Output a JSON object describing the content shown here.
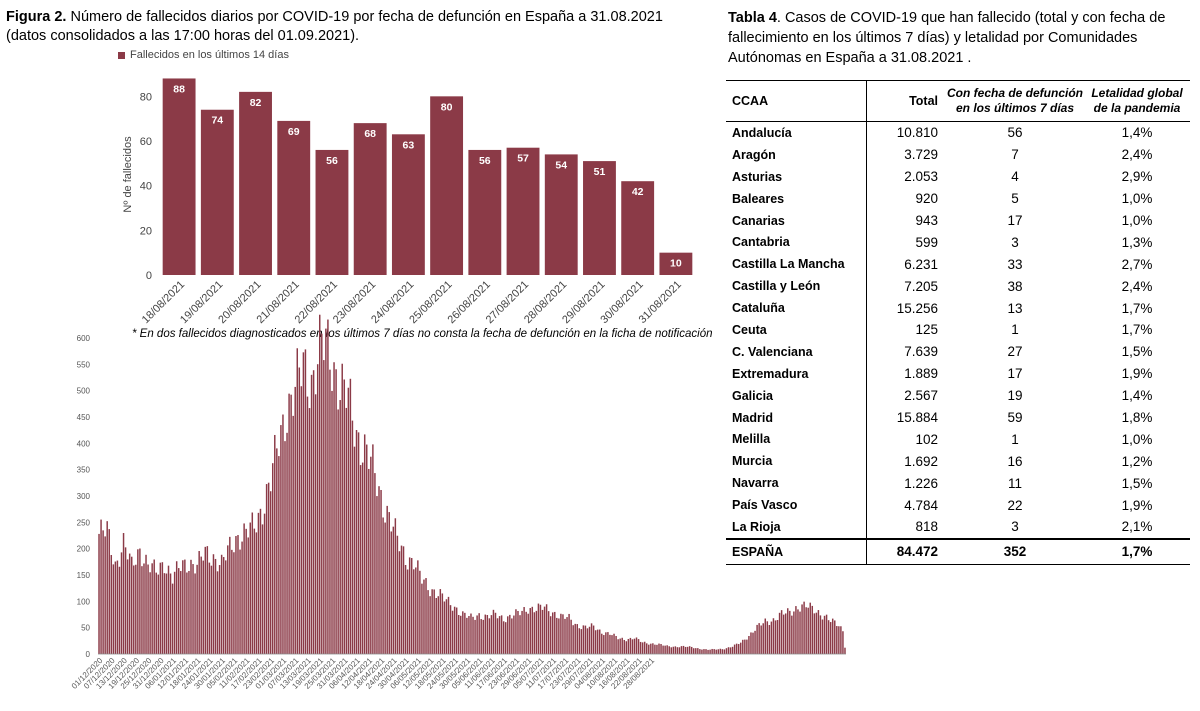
{
  "figure": {
    "label": "Figura 2.",
    "caption": " Número de fallecidos diarios por COVID-19 por fecha de defunción en España a 31.08.2021 (datos consolidados a las 17:00 horas del 01.09.2021).",
    "footnote": "* En dos fallecidos diagnosticados en los últimos 7 días no consta la fecha de defunción en la ficha de notificación"
  },
  "colors": {
    "bar": "#8b3a47"
  },
  "chart_data": [
    {
      "type": "bar",
      "legend": "Fallecidos en los últimos 14 días",
      "legend_placement": "top-left",
      "ylabel": "Nº de fallecidos",
      "ylim": [
        0,
        90
      ],
      "yticks": [
        "0",
        "20",
        "40",
        "60",
        "80"
      ],
      "categories": [
        "18/08/2021",
        "19/08/2021",
        "20/08/2021",
        "21/08/2021",
        "22/08/2021",
        "23/08/2021",
        "24/08/2021",
        "25/08/2021",
        "26/08/2021",
        "27/08/2021",
        "28/08/2021",
        "29/08/2021",
        "30/08/2021",
        "31/08/2021"
      ],
      "values": [
        88,
        74,
        82,
        69,
        56,
        68,
        63,
        80,
        56,
        57,
        54,
        51,
        42,
        10
      ],
      "labels": [
        "88",
        "74",
        "82",
        "69",
        "56",
        "68",
        "63",
        "80",
        "56",
        "57",
        "54",
        "51",
        "42",
        "10"
      ]
    },
    {
      "type": "bar",
      "ylim": [
        0,
        600
      ],
      "yticks": [
        "0",
        "50",
        "100",
        "150",
        "200",
        "250",
        "300",
        "350",
        "400",
        "450",
        "500",
        "550",
        "600"
      ],
      "xticks": [
        "01/12/2020",
        "07/12/2020",
        "13/12/2020",
        "19/12/2020",
        "25/12/2020",
        "31/12/2020",
        "06/01/2021",
        "12/01/2021",
        "18/01/2021",
        "24/01/2021",
        "30/01/2021",
        "05/02/2021",
        "11/02/2021",
        "17/02/2021",
        "23/02/2021",
        "01/03/2021",
        "07/03/2021",
        "13/03/2021",
        "19/03/2021",
        "25/03/2021",
        "31/03/2021",
        "06/04/2021",
        "12/04/2021",
        "18/04/2021",
        "24/04/2021",
        "30/04/2021",
        "06/05/2021",
        "12/05/2021",
        "18/05/2021",
        "24/05/2021",
        "30/05/2021",
        "05/06/2021",
        "11/06/2021",
        "17/06/2021",
        "23/06/2021",
        "29/06/2021",
        "05/07/2021",
        "11/07/2021",
        "17/07/2021",
        "23/07/2021",
        "29/07/2021",
        "04/08/2021",
        "10/08/2021",
        "16/08/2021",
        "22/08/2021",
        "28/08/2021"
      ],
      "x_start": "01/12/2020",
      "anchors": [
        [
          0,
          228
        ],
        [
          4,
          232
        ],
        [
          8,
          170
        ],
        [
          12,
          210
        ],
        [
          16,
          165
        ],
        [
          20,
          200
        ],
        [
          24,
          168
        ],
        [
          28,
          155
        ],
        [
          32,
          175
        ],
        [
          36,
          145
        ],
        [
          40,
          165
        ],
        [
          44,
          175
        ],
        [
          48,
          168
        ],
        [
          52,
          190
        ],
        [
          56,
          185
        ],
        [
          60,
          170
        ],
        [
          64,
          200
        ],
        [
          68,
          225
        ],
        [
          72,
          230
        ],
        [
          76,
          240
        ],
        [
          80,
          280
        ],
        [
          84,
          330
        ],
        [
          88,
          400
        ],
        [
          92,
          470
        ],
        [
          96,
          500
        ],
        [
          100,
          545
        ],
        [
          104,
          520
        ],
        [
          108,
          575
        ],
        [
          111,
          585
        ],
        [
          114,
          560
        ],
        [
          118,
          510
        ],
        [
          122,
          480
        ],
        [
          126,
          420
        ],
        [
          130,
          390
        ],
        [
          134,
          350
        ],
        [
          138,
          300
        ],
        [
          142,
          260
        ],
        [
          146,
          215
        ],
        [
          150,
          185
        ],
        [
          154,
          175
        ],
        [
          158,
          140
        ],
        [
          162,
          125
        ],
        [
          166,
          115
        ],
        [
          170,
          100
        ],
        [
          174,
          90
        ],
        [
          178,
          75
        ],
        [
          182,
          68
        ],
        [
          186,
          75
        ],
        [
          190,
          70
        ],
        [
          194,
          75
        ],
        [
          198,
          68
        ],
        [
          202,
          72
        ],
        [
          206,
          78
        ],
        [
          210,
          88
        ],
        [
          214,
          85
        ],
        [
          218,
          88
        ],
        [
          222,
          80
        ],
        [
          226,
          70
        ],
        [
          230,
          68
        ],
        [
          234,
          55
        ],
        [
          238,
          50
        ],
        [
          242,
          52
        ],
        [
          246,
          42
        ],
        [
          250,
          38
        ],
        [
          254,
          30
        ],
        [
          258,
          28
        ],
        [
          262,
          30
        ],
        [
          266,
          22
        ],
        [
          270,
          20
        ],
        [
          274,
          18
        ],
        [
          278,
          15
        ],
        [
          282,
          14
        ],
        [
          286,
          14
        ],
        [
          290,
          13
        ],
        [
          294,
          10
        ],
        [
          298,
          8
        ],
        [
          302,
          9
        ],
        [
          306,
          10
        ],
        [
          310,
          14
        ],
        [
          314,
          22
        ],
        [
          318,
          35
        ],
        [
          322,
          50
        ],
        [
          326,
          62
        ],
        [
          330,
          65
        ],
        [
          334,
          75
        ],
        [
          338,
          80
        ],
        [
          342,
          90
        ],
        [
          346,
          90
        ],
        [
          350,
          85
        ],
        [
          354,
          75
        ],
        [
          358,
          62
        ],
        [
          362,
          55
        ],
        [
          364,
          45
        ],
        [
          365,
          12
        ]
      ]
    }
  ],
  "table": {
    "label": "Tabla 4",
    "caption": ". Casos de COVID-19 que han fallecido (total y con fecha de fallecimiento en los últimos 7 días) y letalidad por Comunidades Autónomas en España a 31.08.2021 .",
    "headers": {
      "ccaa": "CCAA",
      "total": "Total",
      "recent_1": "Con fecha de defunción",
      "recent_2": "en los últimos 7 días",
      "lethality_1": "Letalidad global",
      "lethality_2": "de la pandemia"
    },
    "rows": [
      {
        "ccaa": "Andalucía",
        "total": "10.810",
        "recent": "56",
        "lethality": "1,4%"
      },
      {
        "ccaa": "Aragón",
        "total": "3.729",
        "recent": "7",
        "lethality": "2,4%"
      },
      {
        "ccaa": "Asturias",
        "total": "2.053",
        "recent": "4",
        "lethality": "2,9%"
      },
      {
        "ccaa": "Baleares",
        "total": "920",
        "recent": "5",
        "lethality": "1,0%"
      },
      {
        "ccaa": "Canarias",
        "total": "943",
        "recent": "17",
        "lethality": "1,0%"
      },
      {
        "ccaa": "Cantabria",
        "total": "599",
        "recent": "3",
        "lethality": "1,3%"
      },
      {
        "ccaa": "Castilla La Mancha",
        "total": "6.231",
        "recent": "33",
        "lethality": "2,7%"
      },
      {
        "ccaa": "Castilla y León",
        "total": "7.205",
        "recent": "38",
        "lethality": "2,4%"
      },
      {
        "ccaa": "Cataluña",
        "total": "15.256",
        "recent": "13",
        "lethality": "1,7%"
      },
      {
        "ccaa": "Ceuta",
        "total": "125",
        "recent": "1",
        "lethality": "1,7%"
      },
      {
        "ccaa": "C. Valenciana",
        "total": "7.639",
        "recent": "27",
        "lethality": "1,5%"
      },
      {
        "ccaa": "Extremadura",
        "total": "1.889",
        "recent": "17",
        "lethality": "1,9%"
      },
      {
        "ccaa": "Galicia",
        "total": "2.567",
        "recent": "19",
        "lethality": "1,4%"
      },
      {
        "ccaa": "Madrid",
        "total": "15.884",
        "recent": "59",
        "lethality": "1,8%"
      },
      {
        "ccaa": "Melilla",
        "total": "102",
        "recent": "1",
        "lethality": "1,0%"
      },
      {
        "ccaa": "Murcia",
        "total": "1.692",
        "recent": "16",
        "lethality": "1,2%"
      },
      {
        "ccaa": "Navarra",
        "total": "1.226",
        "recent": "11",
        "lethality": "1,5%"
      },
      {
        "ccaa": "País Vasco",
        "total": "4.784",
        "recent": "22",
        "lethality": "1,9%"
      },
      {
        "ccaa": "La Rioja",
        "total": "818",
        "recent": "3",
        "lethality": "2,1%"
      }
    ],
    "total_row": {
      "ccaa": "ESPAÑA",
      "total": "84.472",
      "recent": "352",
      "lethality": "1,7%"
    }
  }
}
